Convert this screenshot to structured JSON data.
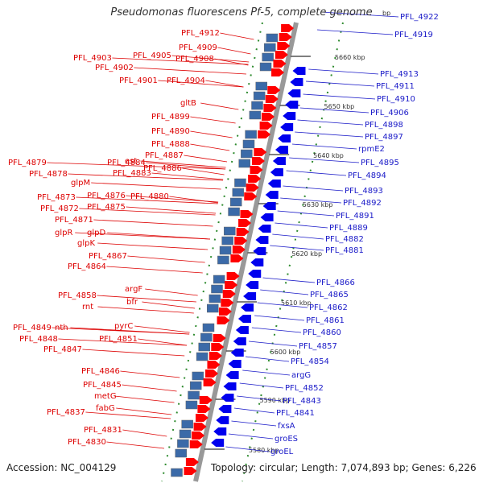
{
  "title": "Pseudomonas fluorescens Pf-5, complete genome",
  "accession": "Accession: NC_004129",
  "topology": "Topology: circular; Length: 7,074,893 bp; Genes: 6,226",
  "bp_fragment": "bp",
  "colors": {
    "forward": "#ff0000",
    "reverse": "#0000ee",
    "label_left": "#dd0000",
    "label_right": "#1a1ac8",
    "backbone": "#999999",
    "ticks": "#2e8b2e"
  },
  "kbp_ticks": [
    "5660 kbp",
    "5650 kbp",
    "5640 kbp",
    "5630 kbp",
    "5620 kbp",
    "5610 kbp",
    "5600 kbp",
    "5590 kbp",
    "5580 kbp"
  ],
  "left_labels": [
    "PFL_4912",
    "PFL_4909",
    "PFL_4905",
    "PFL_4908",
    "PFL_4903",
    "PFL_4902",
    "PFL_4901",
    "PFL_4904",
    "gltB",
    "PFL_4899",
    "PFL_4890",
    "PFL_4888",
    "PFL_4887",
    "est",
    "PFL_4886",
    "PFL_4884",
    "PFL_4883",
    "PFL_4879",
    "PFL_4878",
    "glpM",
    "PFL_4876",
    "PFL_4880",
    "PFL_4875",
    "PFL_4873",
    "PFL_4872",
    "PFL_4871",
    "glpR",
    "glpD",
    "glpK",
    "PFL_4867",
    "PFL_4864",
    "argF",
    "PFL_4858",
    "bfr",
    "rnt",
    "pyrC",
    "PFL_4849",
    "nth",
    "PFL_4851",
    "PFL_4848",
    "PFL_4847",
    "PFL_4846",
    "PFL_4845",
    "metG",
    "fabG",
    "PFL_4837",
    "PFL_4831",
    "PFL_4830"
  ],
  "right_labels": [
    "PFL_4922",
    "PFL_4919",
    "PFL_4913",
    "PFL_4911",
    "PFL_4910",
    "PFL_4906",
    "PFL_4898",
    "PFL_4897",
    "rpmE2",
    "PFL_4895",
    "PFL_4894",
    "PFL_4893",
    "PFL_4892",
    "PFL_4891",
    "PFL_4889",
    "PFL_4882",
    "PFL_4881",
    "PFL_4866",
    "PFL_4865",
    "PFL_4862",
    "PFL_4861",
    "PFL_4860",
    "PFL_4857",
    "PFL_4854",
    "argG",
    "PFL_4852",
    "PFL_4843",
    "PFL_4841",
    "fxsA",
    "groES",
    "groEL"
  ]
}
